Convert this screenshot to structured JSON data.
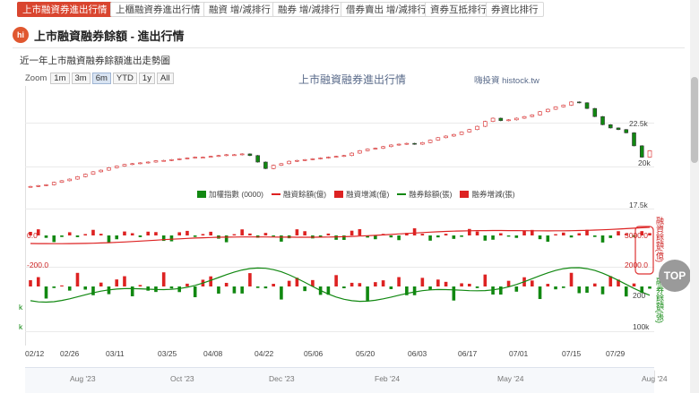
{
  "tabs": [
    {
      "label": "上市融資券進出行情",
      "active": true
    },
    {
      "label": "上櫃融資券進出行情",
      "active": false
    },
    {
      "label": "融資 增/減排行",
      "active": false
    },
    {
      "label": "融券 增/減排行",
      "active": false
    },
    {
      "label": "借券賣出 增/減排行",
      "active": false
    },
    {
      "label": "資券互抵排行",
      "active": false
    },
    {
      "label": "券資比排行",
      "active": false
    }
  ],
  "section": {
    "logo": "hi",
    "title": "上市融資融券餘額 - 進出行情"
  },
  "subtitle": "近一年上市融資融券餘額進出走勢圖",
  "zoom": {
    "label": "Zoom",
    "buttons": [
      "1m",
      "3m",
      "6m",
      "YTD",
      "1y",
      "All"
    ],
    "selected": "6m"
  },
  "chart_title": "上市融資融券進出行情",
  "credit": "嗨投資 histock.tw",
  "top_button": "TOP",
  "colors": {
    "accent": "#d9452f",
    "up": "#dd2222",
    "down": "#118811",
    "margin_line": "#dd2222",
    "short_line": "#118811"
  },
  "legend": [
    {
      "label": "加權指數 (0000)",
      "kind": "square",
      "color": "#118811"
    },
    {
      "label": "融資餘額(億)",
      "kind": "line",
      "color": "#dd2222"
    },
    {
      "label": "融資增減(億)",
      "kind": "square",
      "color": "#dd2222"
    },
    {
      "label": "融券餘額(張)",
      "kind": "line",
      "color": "#118811"
    },
    {
      "label": "融券增減(張)",
      "kind": "square",
      "color": "#dd2222"
    }
  ],
  "chart_data": {
    "type": "candlestick+bar+line",
    "x_ticks": [
      "02/12",
      "02/26",
      "03/11",
      "03/25",
      "04/08",
      "04/22",
      "05/06",
      "05/20",
      "06/03",
      "06/17",
      "07/01",
      "07/15",
      "07/29"
    ],
    "index_panel": {
      "y_ticks": [
        "22.5k",
        "20k",
        "17.5k"
      ],
      "ylim": [
        17500,
        24500
      ],
      "close": [
        18700,
        18750,
        18800,
        18950,
        19050,
        19150,
        19300,
        19450,
        19600,
        19700,
        19850,
        19950,
        20050,
        20100,
        20150,
        20200,
        20280,
        20300,
        20350,
        20400,
        20450,
        20500,
        20500,
        20550,
        20600,
        20650,
        20650,
        20700,
        20600,
        20200,
        19800,
        20000,
        20100,
        20250,
        20300,
        20350,
        20400,
        20450,
        20500,
        20550,
        20600,
        20750,
        20900,
        21000,
        21050,
        21150,
        21250,
        21300,
        21350,
        21300,
        21400,
        21550,
        21700,
        21800,
        21900,
        22050,
        22200,
        22400,
        22700,
        22900,
        22750,
        22800,
        22900,
        23000,
        23100,
        23300,
        23450,
        23600,
        23700,
        23900,
        23850,
        23500,
        23000,
        22500,
        22300,
        22200,
        22000,
        21200,
        20500,
        20900
      ]
    },
    "margin_panel": {
      "y_ticks": [
        "0.0",
        "-200.0"
      ],
      "right_ticks": [
        "3000.0",
        "2000.0"
      ],
      "series_label": "融資餘額(億)"
    },
    "short_panel": {
      "left_ticks": [
        "k",
        "k"
      ],
      "right_ticks": [
        "200",
        "100k"
      ],
      "series_label": "融券餘額(張)"
    },
    "navigator": {
      "labels": [
        "Aug '23",
        "Oct '23",
        "Dec '23",
        "Feb '24",
        "May '24",
        "Aug '24"
      ]
    }
  }
}
